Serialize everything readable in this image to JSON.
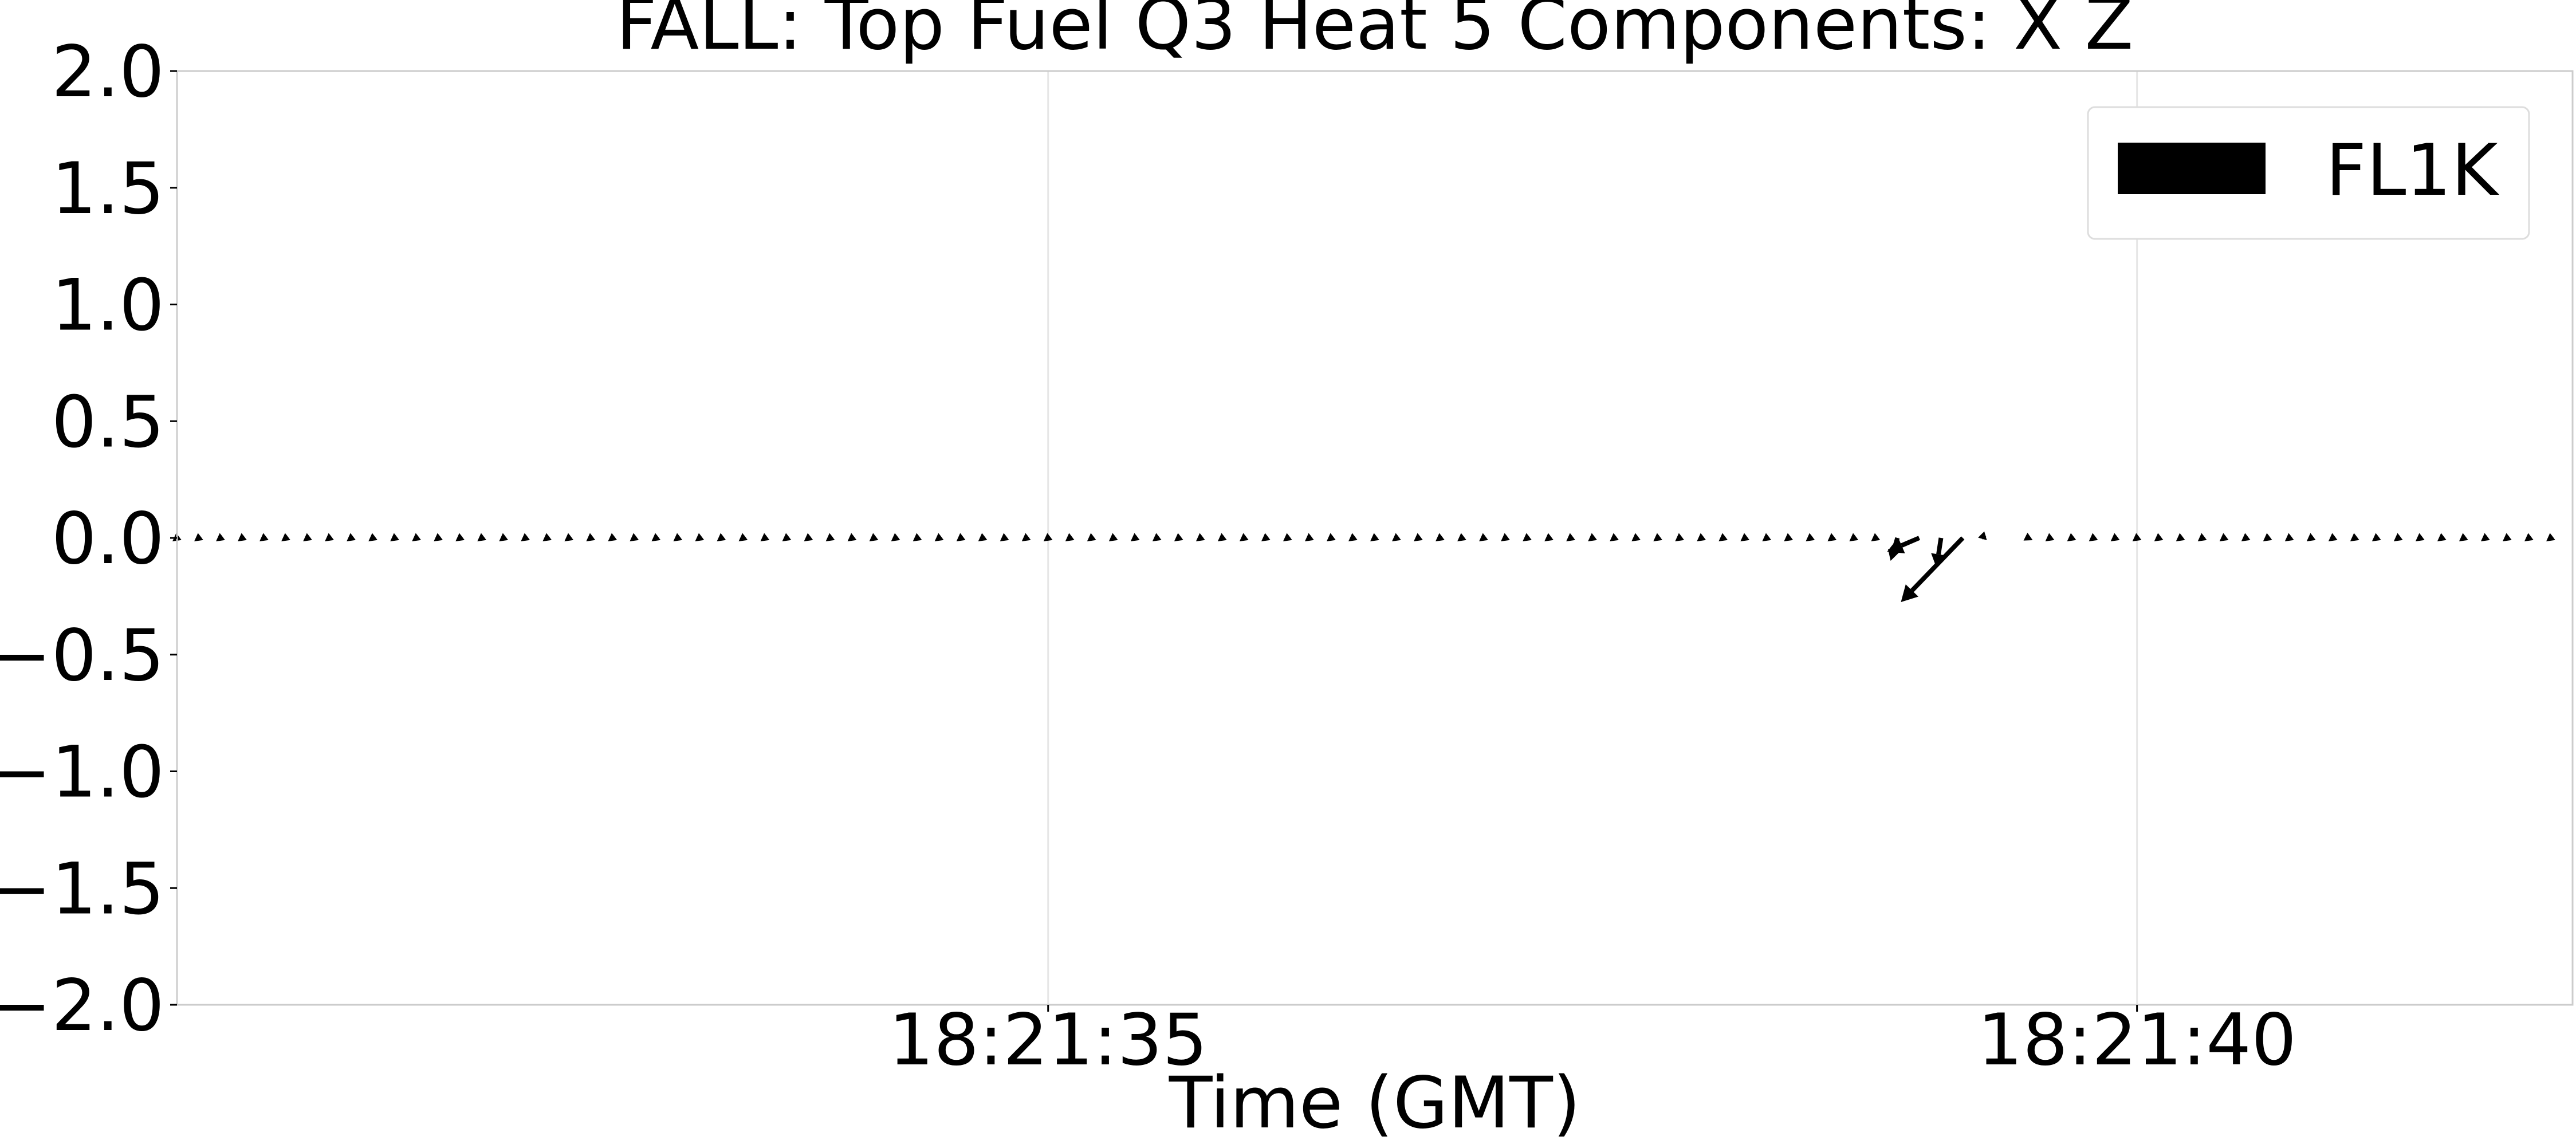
{
  "chart_data": {
    "type": "quiver",
    "title": "FALL: Top Fuel Q3 Heat 5 Components: X Z",
    "xlabel": "Time (GMT)",
    "ylabel": "",
    "x_ticks": [
      {
        "label": "18:21:35",
        "t": 35
      },
      {
        "label": "18:21:40",
        "t": 40
      }
    ],
    "xlim_seconds": [
      31,
      42
    ],
    "ylim": [
      -2.0,
      2.0
    ],
    "y_ticks": [
      {
        "value": 2.0,
        "label": "2.0"
      },
      {
        "value": 1.5,
        "label": "1.5"
      },
      {
        "value": 1.0,
        "label": "1.0"
      },
      {
        "value": 0.5,
        "label": "0.5"
      },
      {
        "value": 0.0,
        "label": "0.0"
      },
      {
        "value": -0.5,
        "label": "−0.5"
      },
      {
        "value": -1.0,
        "label": "−1.0"
      },
      {
        "value": -1.5,
        "label": "−1.5"
      },
      {
        "value": -2.0,
        "label": "−2.0"
      }
    ],
    "grid": "vertical-at-x-ticks",
    "legend": {
      "placement": "top-right",
      "entries": [
        "FL1K"
      ]
    },
    "series": [
      {
        "name": "FL1K",
        "color": "#000000",
        "sample_interval_s": 0.1,
        "vectors_regular": {
          "t_start": 31.0,
          "t_end": 38.8,
          "dx": -0.02,
          "dz": -0.015
        },
        "vectors_special": [
          {
            "t": 38.9,
            "dx": -0.03,
            "dz": -0.1
          },
          {
            "t": 39.0,
            "dx": -0.14,
            "dz": -0.06
          },
          {
            "t": 39.1,
            "dx": -0.02,
            "dz": -0.13
          },
          {
            "t": 39.2,
            "dx": -0.27,
            "dz": -0.28
          },
          {
            "t": 39.3,
            "dx": 0.01,
            "dz": -0.01
          },
          {
            "t": 39.5,
            "dx": 0.02,
            "dz": -0.01
          }
        ],
        "vectors_regular_2": {
          "t_start": 39.6,
          "t_end": 41.9,
          "dx": -0.02,
          "dz": -0.015
        }
      }
    ]
  }
}
